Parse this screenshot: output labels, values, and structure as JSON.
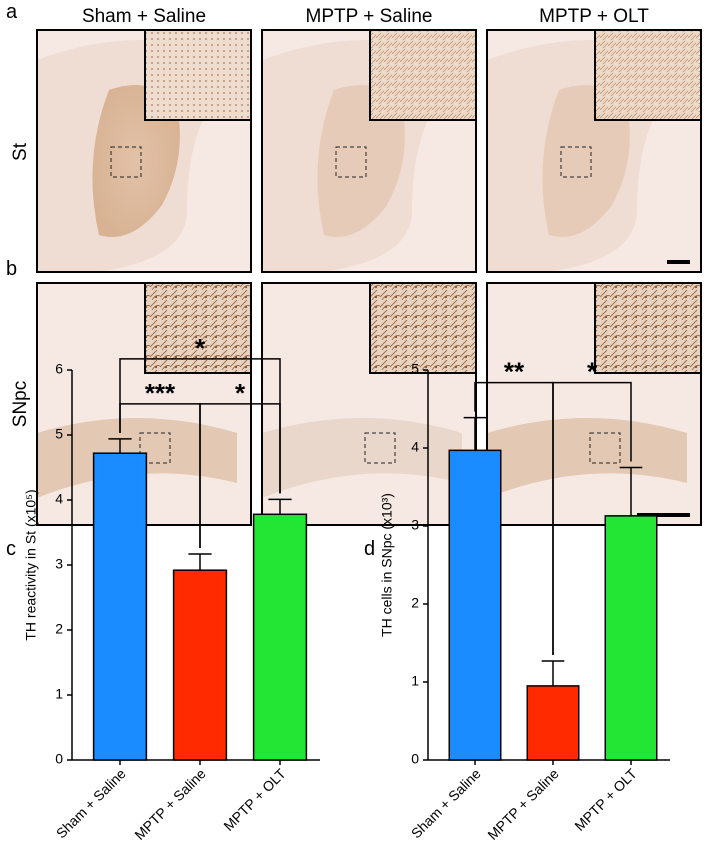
{
  "panel_labels": [
    "a",
    "b",
    "c",
    "d"
  ],
  "column_titles": [
    "Sham + Saline",
    "MPTP + Saline",
    "MPTP + OLT"
  ],
  "row_labels": [
    "St",
    "SNpc"
  ],
  "chart_data": [
    {
      "type": "bar",
      "y_label": "TH reactivity in St (x10⁵)",
      "categories": [
        "Sham + Saline",
        "MPTP + Saline",
        "MPTP + OLT"
      ],
      "values": [
        4.72,
        2.92,
        3.78
      ],
      "errors": [
        0.22,
        0.25,
        0.23
      ],
      "colors": [
        "#1a8cff",
        "#ff2a00",
        "#22e633"
      ],
      "ylim": [
        0,
        6
      ],
      "yticks": [
        0,
        1,
        2,
        3,
        4,
        5,
        6
      ],
      "significance": [
        {
          "label": "*",
          "between": [
            "Sham + Saline",
            "MPTP + OLT"
          ]
        },
        {
          "label": "***",
          "between": [
            "Sham + Saline",
            "MPTP + Saline"
          ]
        },
        {
          "label": "*",
          "between": [
            "MPTP + Saline",
            "MPTP + OLT"
          ]
        }
      ]
    },
    {
      "type": "bar",
      "y_label": "TH cells in SNpc (x10³)",
      "categories": [
        "Sham + Saline",
        "MPTP + Saline",
        "MPTP + OLT"
      ],
      "values": [
        3.97,
        0.95,
        3.13
      ],
      "errors": [
        0.42,
        0.32,
        0.62
      ],
      "colors": [
        "#1a8cff",
        "#ff2a00",
        "#22e633"
      ],
      "ylim": [
        0,
        5
      ],
      "yticks": [
        0,
        1,
        2,
        3,
        4,
        5
      ],
      "significance": [
        {
          "label": "**",
          "between": [
            "Sham + Saline",
            "MPTP + Saline"
          ]
        },
        {
          "label": "*",
          "between": [
            "MPTP + Saline",
            "MPTP + OLT"
          ]
        }
      ]
    }
  ]
}
